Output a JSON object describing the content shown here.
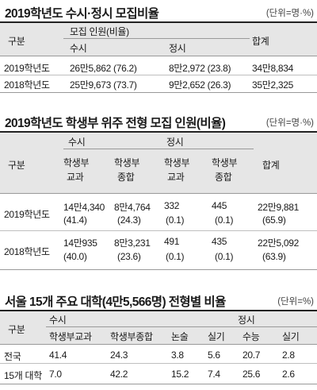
{
  "chart_data": [
    {
      "type": "table",
      "title": "2019학년도 수시·정시 모집비율",
      "unit": "(단위=명·%)",
      "headers": {
        "label": "구분",
        "group": "모집 인원(비율)",
        "cols": [
          "수시",
          "정시"
        ],
        "total": "합계"
      },
      "rows": [
        {
          "label": "2019학년도",
          "susi": "26만5,862 (76.2)",
          "jeongsi": "8만2,972 (23.8)",
          "total": "34만8,834"
        },
        {
          "label": "2018학년도",
          "susi": "25만9,673 (73.7)",
          "jeongsi": "9만2,652 (26.3)",
          "total": "35만2,325"
        }
      ]
    },
    {
      "type": "table",
      "title": "2019학년도 학생부 위주 전형 모집 인원(비율)",
      "unit": "(단위=명·%)",
      "headers": {
        "label": "구분",
        "groups": [
          "수시",
          "정시"
        ],
        "cols": [
          "학생부\n교과",
          "학생부\n종합",
          "학생부\n교과",
          "학생부\n종합"
        ],
        "col_lines": [
          [
            "학생부",
            "교과"
          ],
          [
            "학생부",
            "종합"
          ],
          [
            "학생부",
            "교과"
          ],
          [
            "학생부",
            "종합"
          ]
        ],
        "total": "합계"
      },
      "rows": [
        {
          "label": "2019학년도",
          "values": [
            "14만4,340",
            "8만4,764",
            "332",
            "445"
          ],
          "ratios": [
            "(41.4)",
            "(24.3)",
            "(0.1)",
            "(0.1)"
          ],
          "total": "22만9,881",
          "total_ratio": "(65.9)"
        },
        {
          "label": "2018학년도",
          "values": [
            "14만935",
            "8만3,231",
            "491",
            "435"
          ],
          "ratios": [
            "(40.0)",
            "(23.6)",
            "(0.1)",
            "(0.1)"
          ],
          "total": "22만5,092",
          "total_ratio": "(63.9)"
        }
      ]
    },
    {
      "type": "table",
      "title": "서울 15개 주요 대학(4만5,566명) 전형별 비율",
      "unit": "(단위=%)",
      "headers": {
        "label": "구분",
        "groups": [
          "수시",
          "정시"
        ],
        "cols": [
          "학생부교과",
          "학생부종합",
          "논술",
          "실기",
          "수능",
          "실기"
        ]
      },
      "rows": [
        {
          "label": "전국",
          "values": [
            "41.4",
            "24.3",
            "3.8",
            "5.6",
            "20.7",
            "2.8"
          ]
        },
        {
          "label": "15개 대학",
          "values": [
            "7.0",
            "42.2",
            "15.2",
            "7.4",
            "25.6",
            "2.6"
          ]
        }
      ]
    }
  ]
}
